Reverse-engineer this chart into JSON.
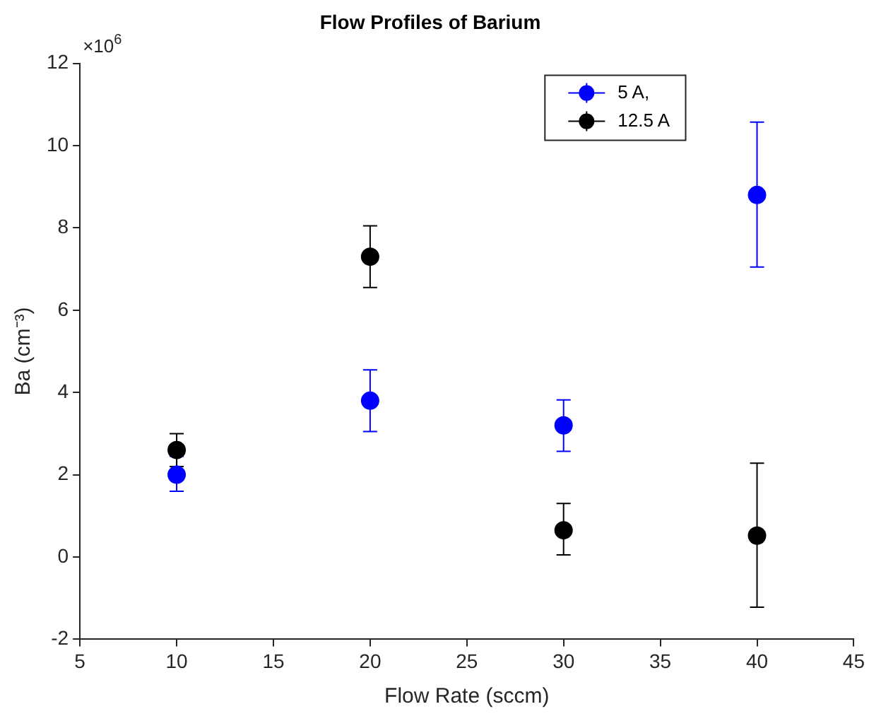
{
  "chart_data": {
    "type": "scatter",
    "title": "Flow Profiles of Barium",
    "xlabel": "Flow Rate (sccm)",
    "ylabel": "Ba (cm⁻³)",
    "annotations": [
      "×10$^{6}$"
    ],
    "x": [
      10,
      20,
      30,
      40
    ],
    "series": [
      {
        "name": "5 A,",
        "color": "#0000ff",
        "values": [
          2.0,
          3.8,
          3.2,
          8.8
        ],
        "errors": [
          [
            1.6,
            2.45
          ],
          [
            3.05,
            4.55
          ],
          [
            2.57,
            3.82
          ],
          [
            7.05,
            10.57
          ]
        ]
      },
      {
        "name": "12.5 A",
        "color": "#000000",
        "values": [
          2.6,
          7.3,
          0.65,
          0.52
        ],
        "errors": [
          [
            2.2,
            3.0
          ],
          [
            6.55,
            8.05
          ],
          [
            0.05,
            1.3
          ],
          [
            -1.22,
            2.28
          ]
        ]
      }
    ],
    "xlim": [
      5,
      45
    ],
    "xticks": [
      5,
      10,
      15,
      20,
      25,
      30,
      35,
      40,
      45
    ],
    "ylim": [
      -2,
      12
    ],
    "yticks": [
      -2,
      0,
      2,
      4,
      6,
      8,
      10,
      12
    ],
    "marker": "circle",
    "legend": "top right"
  }
}
